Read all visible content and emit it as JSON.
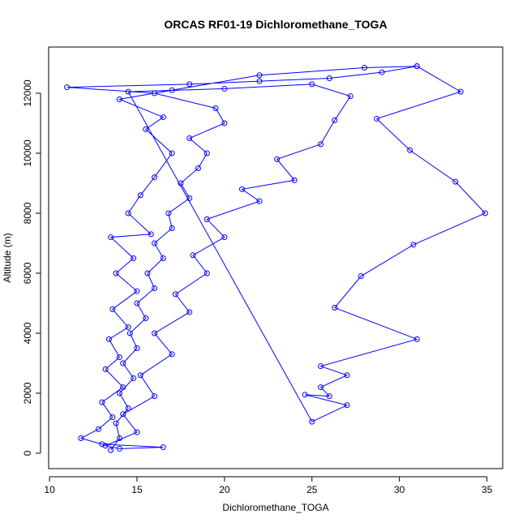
{
  "chart_data": {
    "type": "line",
    "title": "ORCAS RF01-19 Dichloromethane_TOGA",
    "x_label": "Dichloromethane_TOGA",
    "y_label": "Altitude (m)",
    "color": "#0000ff",
    "markers": true,
    "xlim": [
      9.95,
      35.9
    ],
    "ylim": [
      -514,
      13540
    ],
    "xticks": [
      10,
      15,
      20,
      25,
      30,
      35
    ],
    "yticks": [
      0,
      2000,
      4000,
      6000,
      8000,
      10000,
      12000
    ],
    "x": [
      13.5,
      14,
      13.8,
      14.5,
      14,
      14.8,
      14.2,
      15,
      14.6,
      15.5,
      15,
      16,
      15.6,
      16.5,
      16,
      17,
      16.8,
      18,
      17.5,
      18.5,
      19,
      18,
      20,
      19.5,
      16,
      11,
      18,
      22,
      26,
      29,
      31,
      28,
      22,
      17,
      14,
      16.5,
      15.5,
      17,
      16,
      15.2,
      14.5,
      15.8,
      13.5,
      14.8,
      13.8,
      15,
      13.6,
      14.5,
      13.4,
      14,
      13.2,
      14.2,
      13,
      13.6,
      12.8,
      11.8,
      13,
      16.5,
      14,
      13.2,
      15,
      14.2,
      16,
      15.2,
      17,
      16,
      18,
      17.2,
      19,
      18.2,
      20,
      19,
      22,
      21,
      24,
      23,
      25.5,
      26.3,
      27.2,
      25,
      20,
      14.5,
      25,
      27,
      24.6,
      26,
      25.5,
      27,
      25.5,
      31,
      26.3,
      27.8,
      30.8,
      34.9,
      33.2,
      30.6,
      28.7,
      33.5,
      31
    ],
    "values": [
      100,
      500,
      1000,
      1500,
      2000,
      2500,
      3000,
      3500,
      4000,
      4500,
      5000,
      5500,
      6000,
      6500,
      7000,
      7500,
      8000,
      8500,
      9000,
      9500,
      10000,
      10500,
      11000,
      11500,
      12000,
      12200,
      12300,
      12400,
      12500,
      12700,
      12900,
      12850,
      12600,
      12100,
      11800,
      11200,
      10800,
      10000,
      9200,
      8600,
      8000,
      7300,
      7200,
      6500,
      6000,
      5400,
      4800,
      4200,
      3800,
      3200,
      2800,
      2200,
      1700,
      1200,
      800,
      500,
      300,
      200,
      150,
      250,
      700,
      1300,
      1900,
      2600,
      3300,
      4000,
      4700,
      5300,
      6000,
      6600,
      7200,
      7800,
      8400,
      8800,
      9100,
      9800,
      10300,
      11100,
      11900,
      12300,
      12150,
      12050,
      1050,
      1600,
      1950,
      1900,
      2200,
      2600,
      2900,
      3800,
      4850,
      5900,
      6950,
      8000,
      9050,
      10100,
      11150,
      12050,
      12900
    ]
  }
}
